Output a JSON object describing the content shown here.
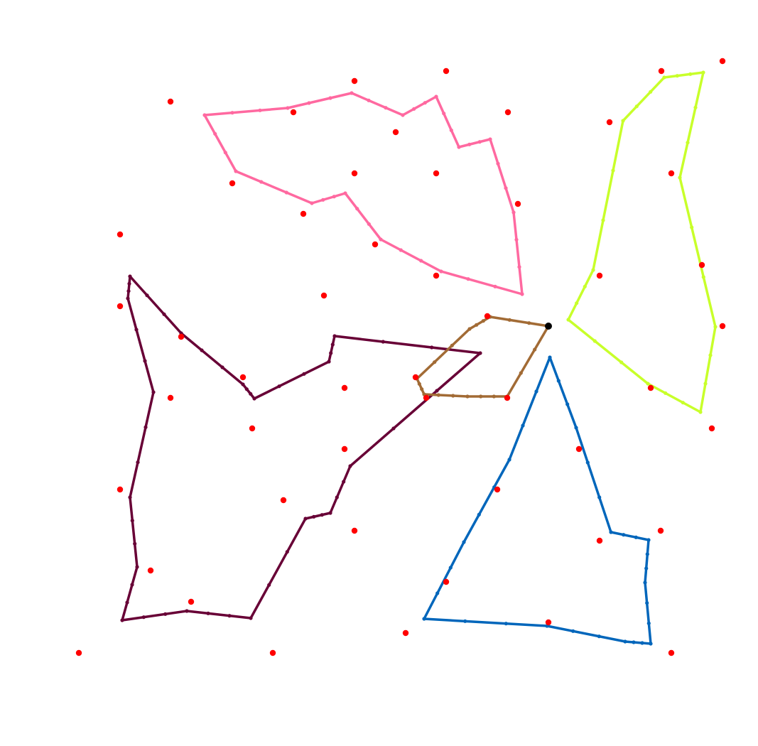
{
  "background": "#ffffff",
  "point_color": "#ff0000",
  "polygons": [
    {
      "id": "pink-polygon",
      "color": "#ff69a0"
    },
    {
      "id": "lime-polygon",
      "color": "#c8ff2a"
    },
    {
      "id": "maroon-polygon",
      "color": "#680036"
    },
    {
      "id": "brown-polygon",
      "color": "#a26b35"
    },
    {
      "id": "blue-polygon",
      "color": "#0066bb"
    }
  ],
  "highlight_marker_color": "#000000"
}
